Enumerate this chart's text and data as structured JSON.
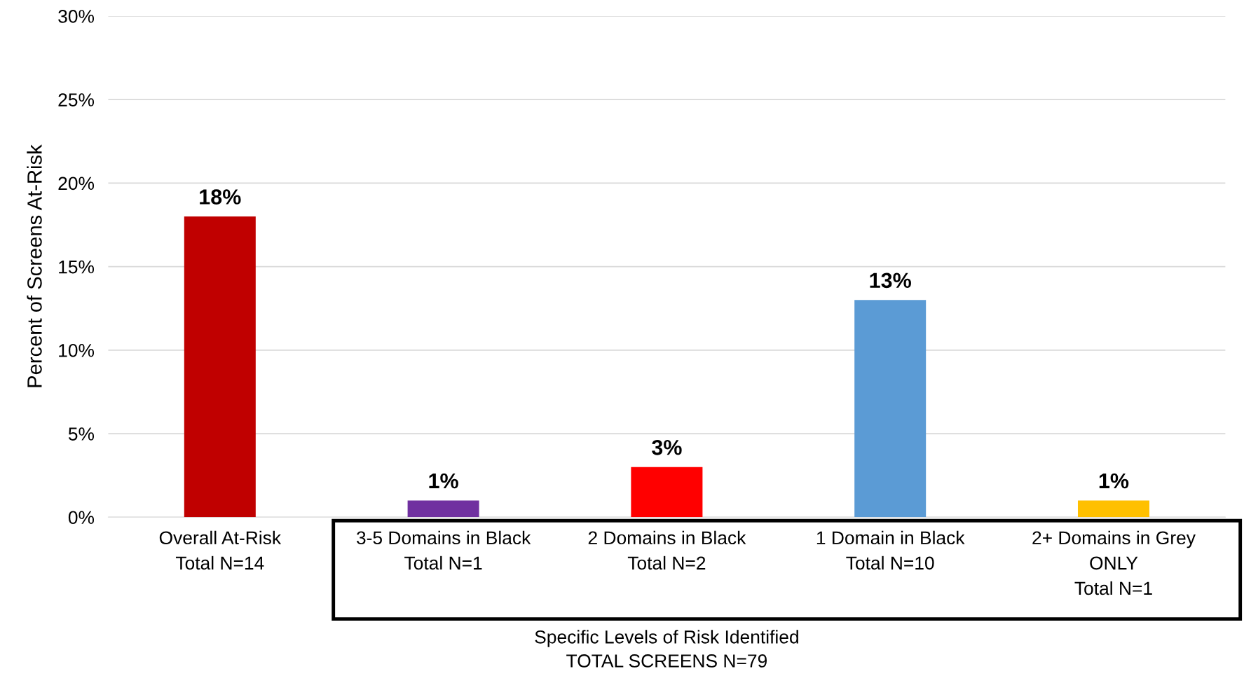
{
  "chart_data": {
    "type": "bar",
    "categories": [
      "Overall At-Risk\nTotal N=14",
      "3-5 Domains in Black\nTotal N=1",
      "2 Domains in Black\nTotal N=2",
      "1 Domain in Black\nTotal N=10",
      "2+ Domains in Grey\nONLY\nTotal N=1"
    ],
    "values": [
      18,
      1,
      3,
      13,
      1
    ],
    "colors": [
      "#c00000",
      "#7030a0",
      "#ff0000",
      "#5b9bd5",
      "#ffc000"
    ],
    "value_labels": [
      "18%",
      "1%",
      "3%",
      "13%",
      "1%"
    ],
    "ylabel": "Percent of Screens At-Risk",
    "xlabel": "Specific Levels of Risk Identified\nTOTAL SCREENS N=79",
    "ylim": [
      0,
      30
    ],
    "yticks": [
      {
        "value": 0,
        "label": "0%"
      },
      {
        "value": 5,
        "label": "5%"
      },
      {
        "value": 10,
        "label": "10%"
      },
      {
        "value": 15,
        "label": "15%"
      },
      {
        "value": 20,
        "label": "20%"
      },
      {
        "value": 25,
        "label": "25%"
      },
      {
        "value": 30,
        "label": "30%"
      }
    ],
    "grid": "y",
    "legend": false
  }
}
